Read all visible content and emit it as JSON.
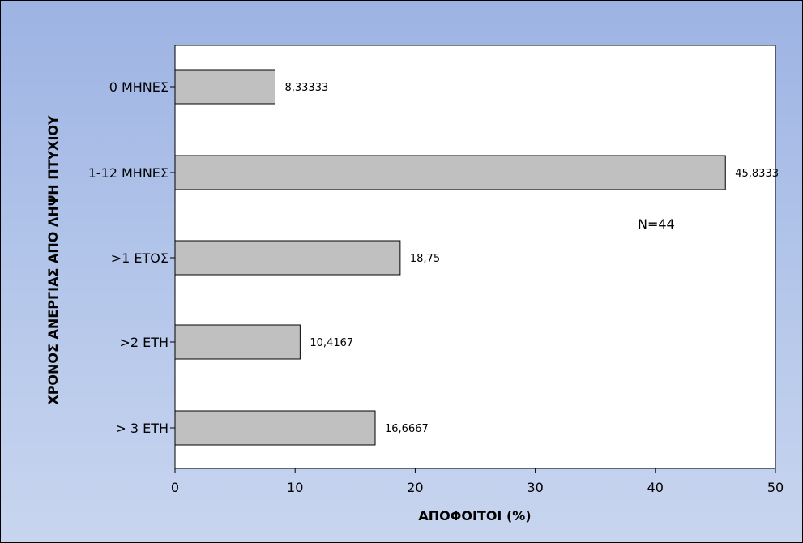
{
  "colors": {
    "bar_fill": "#c0c0c0",
    "plot_bg": "#ffffff",
    "outline": "#000000"
  },
  "chart_data": {
    "type": "bar",
    "orientation": "horizontal",
    "categories": [
      "0 ΜΗΝΕΣ",
      "1-12 ΜΗΝΕΣ",
      ">1 ΕΤΟΣ",
      ">2 ΕΤΗ",
      "> 3 ΕΤΗ"
    ],
    "values": [
      8.33333,
      45.8333,
      18.75,
      10.4167,
      16.6667
    ],
    "value_labels": [
      "8,33333",
      "45,8333",
      "18,75",
      "10,4167",
      "16,6667"
    ],
    "xlabel": "ΑΠΟΦΟΙΤΟΙ (%)",
    "ylabel": "ΧΡΟΝΟΣ ΑΝΕΡΓΙΑΣ ΑΠΟ ΛΗΨΗ ΠΤΥΧΙΟΥ",
    "xlim": [
      0,
      50
    ],
    "xticks": [
      0,
      10,
      20,
      30,
      40,
      50
    ],
    "annotation": "N=44",
    "grid": false
  }
}
